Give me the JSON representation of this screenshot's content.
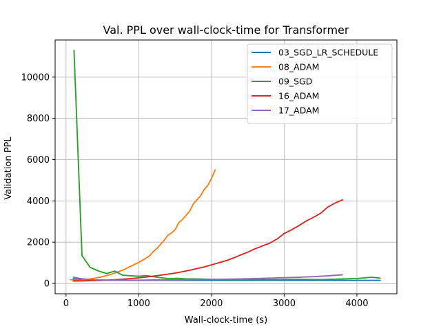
{
  "chart_data": {
    "type": "line",
    "title": "Val. PPL over wall-clock-time for Transformer",
    "xlabel": "Wall-clock-time (s)",
    "ylabel": "Validation PPL",
    "xlim": [
      -150,
      4550
    ],
    "ylim": [
      -500,
      11800
    ],
    "xticks": [
      0,
      1000,
      2000,
      3000,
      4000
    ],
    "xtick_labels": [
      "0",
      "1000",
      "2000",
      "3000",
      "4000"
    ],
    "yticks": [
      0,
      2000,
      4000,
      6000,
      8000,
      10000
    ],
    "ytick_labels": [
      "0",
      "2000",
      "4000",
      "6000",
      "8000",
      "10000"
    ],
    "grid": true,
    "legend_position": "top-right",
    "series": [
      {
        "name": "03_SGD_LR_SCHEDULE",
        "color": "#1f77b4",
        "x": [
          100,
          200,
          400,
          800,
          1200,
          1600,
          2000,
          2400,
          2800,
          3200,
          3600,
          4000,
          4320
        ],
        "y": [
          230,
          180,
          160,
          150,
          150,
          150,
          150,
          150,
          150,
          150,
          150,
          150,
          150
        ]
      },
      {
        "name": "08_ADAM",
        "color": "#ff7f0e",
        "x": [
          60,
          200,
          300,
          400,
          500,
          600,
          700,
          800,
          900,
          1000,
          1100,
          1150,
          1200,
          1250,
          1300,
          1350,
          1400,
          1450,
          1500,
          1550,
          1600,
          1650,
          1700,
          1750,
          1800,
          1850,
          1900,
          1950,
          2000,
          2050
        ],
        "y": [
          180,
          150,
          200,
          260,
          330,
          420,
          540,
          680,
          850,
          1020,
          1220,
          1350,
          1550,
          1700,
          1900,
          2100,
          2330,
          2450,
          2600,
          2950,
          3100,
          3300,
          3500,
          3850,
          4050,
          4250,
          4550,
          4750,
          5100,
          5500
        ]
      },
      {
        "name": "09_SGD",
        "color": "#2ca02c",
        "x": [
          110,
          220,
          330,
          450,
          560,
          670,
          780,
          900,
          1000,
          1100,
          1200,
          1300,
          1420,
          1520,
          1650,
          1800,
          2000,
          2300,
          2600,
          2900,
          3200,
          3500,
          3800,
          4000,
          4200,
          4320
        ],
        "y": [
          11300,
          1350,
          780,
          600,
          480,
          600,
          400,
          370,
          350,
          380,
          330,
          280,
          230,
          250,
          220,
          220,
          200,
          190,
          190,
          190,
          200,
          190,
          220,
          240,
          300,
          260
        ]
      },
      {
        "name": "16_ADAM",
        "color": "#d62728",
        "x": [
          100,
          300,
          500,
          700,
          900,
          1100,
          1300,
          1500,
          1700,
          1900,
          2100,
          2200,
          2300,
          2400,
          2500,
          2600,
          2700,
          2800,
          2900,
          3000,
          3100,
          3200,
          3300,
          3400,
          3500,
          3600,
          3700,
          3800
        ],
        "y": [
          120,
          130,
          150,
          190,
          240,
          310,
          400,
          500,
          640,
          800,
          1000,
          1100,
          1230,
          1380,
          1520,
          1680,
          1820,
          1950,
          2150,
          2420,
          2600,
          2800,
          3020,
          3200,
          3400,
          3700,
          3900,
          4050
        ]
      },
      {
        "name": "17_ADAM",
        "color": "#9467bd",
        "x": [
          100,
          200,
          300,
          400,
          500,
          600,
          800,
          1000,
          1200,
          1400,
          1600,
          1800,
          2000,
          2200,
          2400,
          2600,
          2800,
          3000,
          3200,
          3400,
          3600,
          3800
        ],
        "y": [
          300,
          240,
          200,
          180,
          170,
          160,
          160,
          160,
          170,
          170,
          180,
          190,
          200,
          210,
          220,
          240,
          260,
          280,
          300,
          330,
          370,
          420
        ]
      }
    ]
  }
}
